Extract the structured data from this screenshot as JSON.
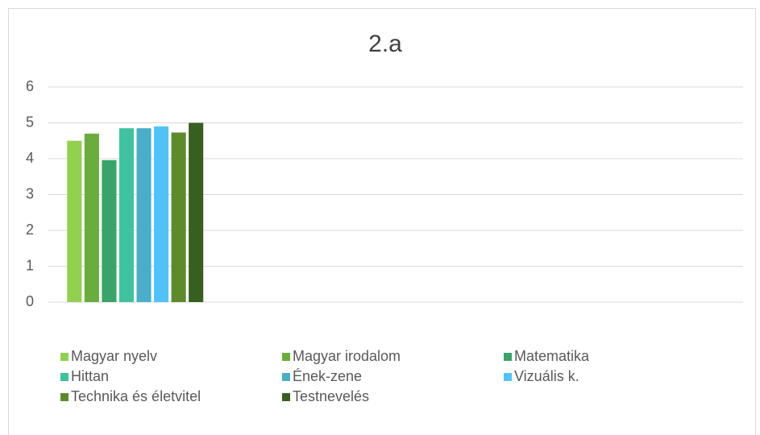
{
  "chart_data": {
    "type": "bar",
    "title": "2.a",
    "categories": [
      null,
      null,
      null,
      null
    ],
    "series": [
      {
        "name": "Magyar nyelv",
        "color": "#92d050",
        "values": [
          4.5,
          null,
          null,
          null
        ]
      },
      {
        "name": "Magyar irodalom",
        "color": "#6aad3d",
        "values": [
          4.7,
          null,
          null,
          null
        ]
      },
      {
        "name": "Matematika",
        "color": "#38a46a",
        "values": [
          3.96,
          null,
          null,
          null
        ]
      },
      {
        "name": "Hittan",
        "color": "#3ec39e",
        "values": [
          4.85,
          null,
          null,
          null
        ]
      },
      {
        "name": "Ének-zene",
        "color": "#4aaec8",
        "values": [
          4.85,
          null,
          null,
          null
        ]
      },
      {
        "name": "Vizuális k.",
        "color": "#4fc3f7",
        "values": [
          4.9,
          null,
          null,
          null
        ]
      },
      {
        "name": "Technika és életvitel",
        "color": "#5e8a2b",
        "values": [
          4.73,
          null,
          null,
          null
        ]
      },
      {
        "name": "Testnevelés",
        "color": "#375f1e",
        "values": [
          5,
          null,
          null,
          null
        ]
      }
    ],
    "ylim": [
      0,
      6
    ],
    "yticks": [
      0,
      1,
      2,
      3,
      4,
      5,
      6
    ],
    "grid": true,
    "legend": "bottom"
  }
}
